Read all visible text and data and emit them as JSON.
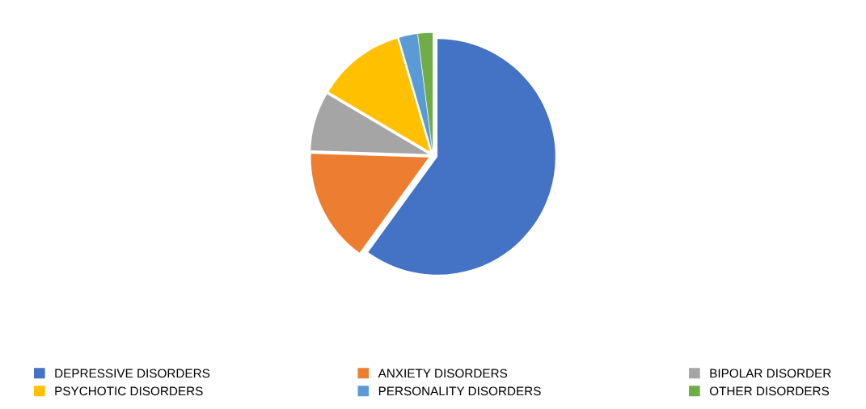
{
  "chart_data": {
    "type": "pie",
    "categories": [
      "DEPRESSIVE DISORDERS",
      "ANXIETY DISORDERS",
      "BIPOLAR DISORDER",
      "PSYCHOTIC DISORDERS",
      "PERSONALITY DISORDERS",
      "OTHER DISORDERS"
    ],
    "values": [
      60,
      15.5,
      8,
      12,
      2.5,
      2
    ],
    "colors": [
      "#4472c4",
      "#ed7d31",
      "#a5a5a5",
      "#ffc000",
      "#5b9bd5",
      "#70ad47"
    ],
    "legend": "bottom"
  }
}
